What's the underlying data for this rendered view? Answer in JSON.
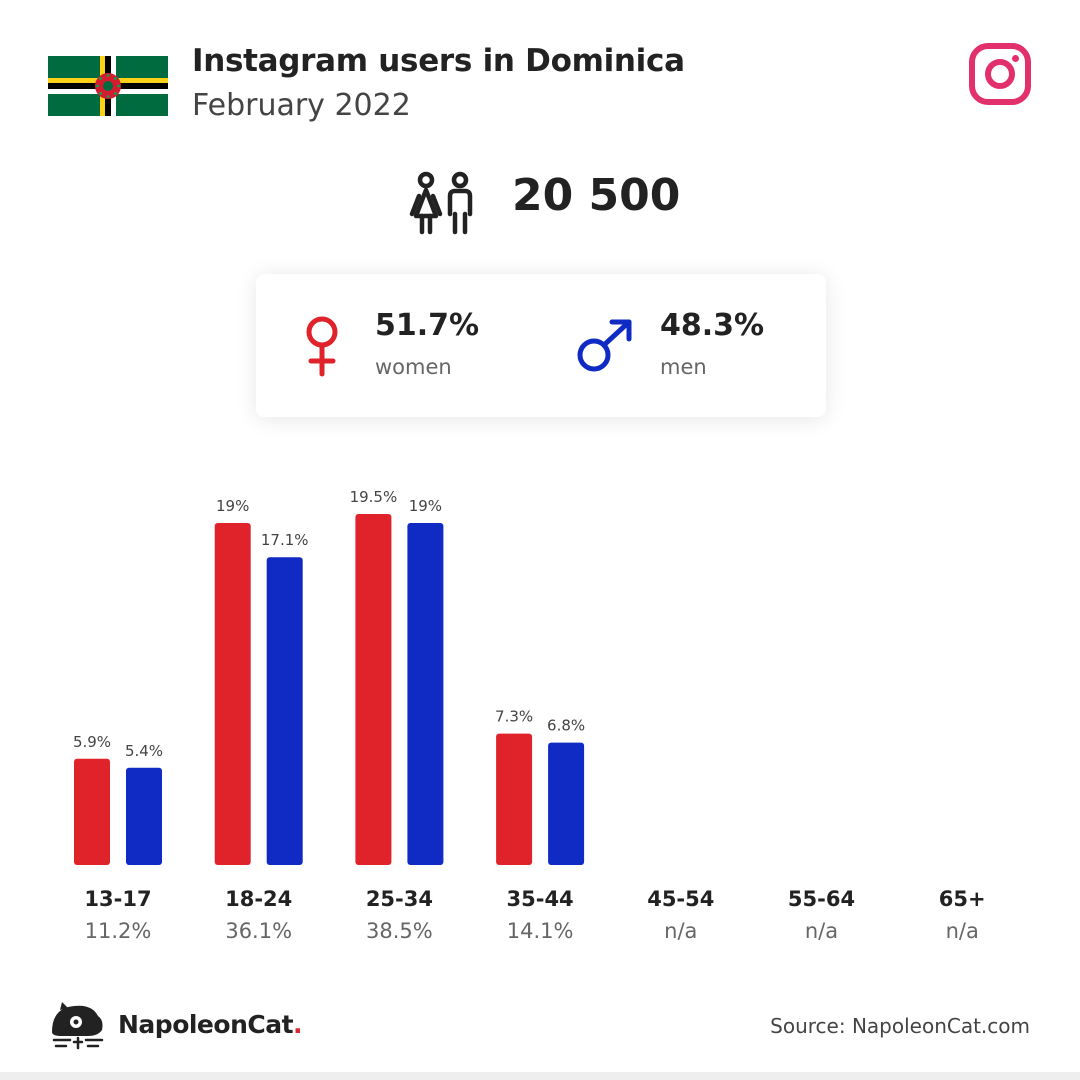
{
  "header": {
    "title": "Instagram users in Dominica",
    "subtitle": "February 2022"
  },
  "icons": {
    "flag": "dominica-flag-icon",
    "platform": "instagram-icon",
    "users": "people-icon",
    "female": "female-symbol-icon",
    "male": "male-symbol-icon",
    "logo": "napoleoncat-logo-icon"
  },
  "total_users": "20 500",
  "gender": {
    "women": {
      "pct": "51.7%",
      "label": "women"
    },
    "men": {
      "pct": "48.3%",
      "label": "men"
    }
  },
  "colors": {
    "women": "#e0232a",
    "men": "#0f2bc4",
    "instagram": "#e1306c"
  },
  "chart_data": {
    "type": "bar",
    "categories": [
      "13-17",
      "18-24",
      "25-34",
      "35-44",
      "45-54",
      "55-64",
      "65+"
    ],
    "group_totals": [
      "11.2%",
      "36.1%",
      "38.5%",
      "14.1%",
      "n/a",
      "n/a",
      "n/a"
    ],
    "series": [
      {
        "name": "women",
        "values": [
          5.9,
          19,
          19.5,
          7.3,
          null,
          null,
          null
        ],
        "labels": [
          "5.9%",
          "19%",
          "19.5%",
          "7.3%",
          "",
          "",
          ""
        ]
      },
      {
        "name": "men",
        "values": [
          5.4,
          17.1,
          19,
          6.8,
          null,
          null,
          null
        ],
        "labels": [
          "5.4%",
          "17.1%",
          "19%",
          "6.8%",
          "",
          "",
          ""
        ]
      }
    ],
    "ylim": [
      0,
      19.5
    ]
  },
  "footer": {
    "brand": "NapoleonCat",
    "brand_dot": ".",
    "source": "Source: NapoleonCat.com"
  }
}
